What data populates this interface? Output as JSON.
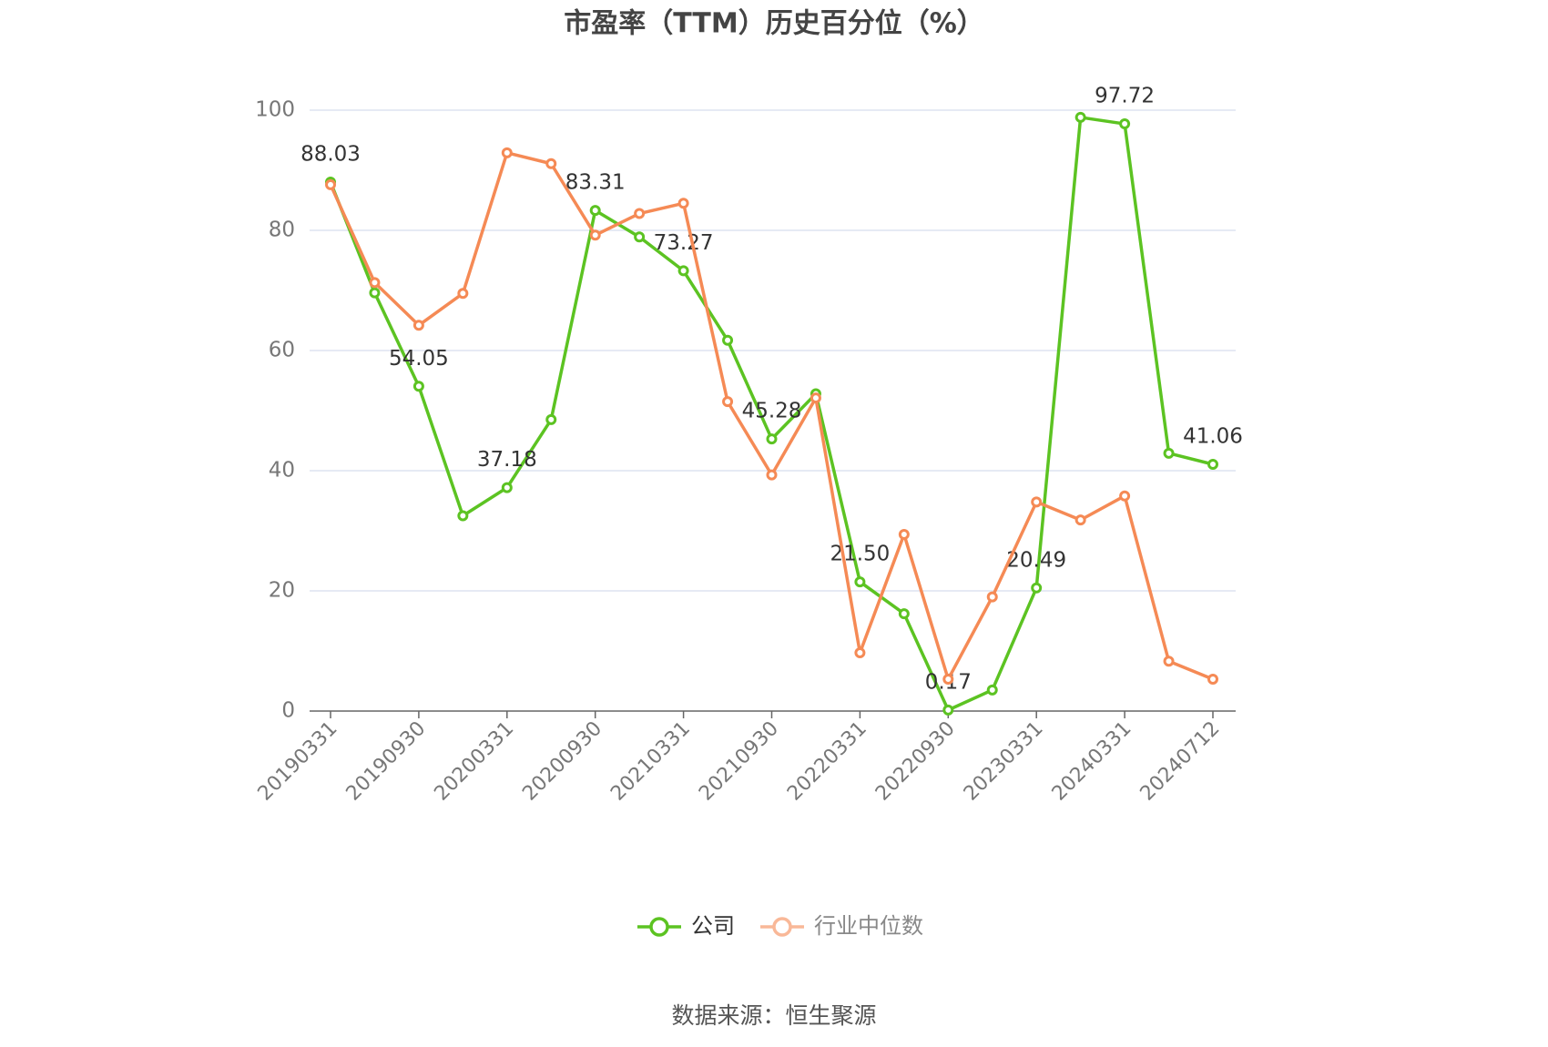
{
  "chart_data": {
    "type": "line",
    "title": "市盈率（TTM）历史百分位（%）",
    "source": "数据来源：恒生聚源",
    "categories": [
      "20190331",
      null,
      "20190930",
      null,
      "20200331",
      null,
      "20200930",
      null,
      "20210331",
      null,
      "20210930",
      null,
      "20220331",
      null,
      "20220930",
      null,
      "20230331",
      null,
      "20240331",
      null,
      "20240712"
    ],
    "series": [
      {
        "name": "公司",
        "color": "#5cc322",
        "values": [
          88.03,
          69.6,
          54.05,
          32.5,
          37.18,
          48.5,
          83.31,
          78.9,
          73.27,
          61.7,
          45.28,
          52.8,
          21.5,
          16.2,
          0.17,
          3.5,
          20.49,
          98.8,
          97.72,
          42.9,
          41.06
        ],
        "value_labels": [
          "88.03",
          null,
          "54.05",
          null,
          "37.18",
          null,
          "83.31",
          null,
          "73.27",
          null,
          "45.28",
          null,
          "21.50",
          null,
          "0.17",
          null,
          "20.49",
          null,
          "97.72",
          null,
          "41.06"
        ]
      },
      {
        "name": "行业中位数",
        "color": "#f58a55",
        "values": [
          87.6,
          71.3,
          64.2,
          69.5,
          92.9,
          91.1,
          79.2,
          82.8,
          84.5,
          51.5,
          39.3,
          52.1,
          9.7,
          29.4,
          5.3,
          19.0,
          34.8,
          31.8,
          35.8,
          8.3,
          5.3
        ]
      }
    ],
    "ylim": [
      0,
      100
    ],
    "yticks": [
      0,
      20,
      40,
      60,
      80,
      100
    ],
    "grid": true
  }
}
